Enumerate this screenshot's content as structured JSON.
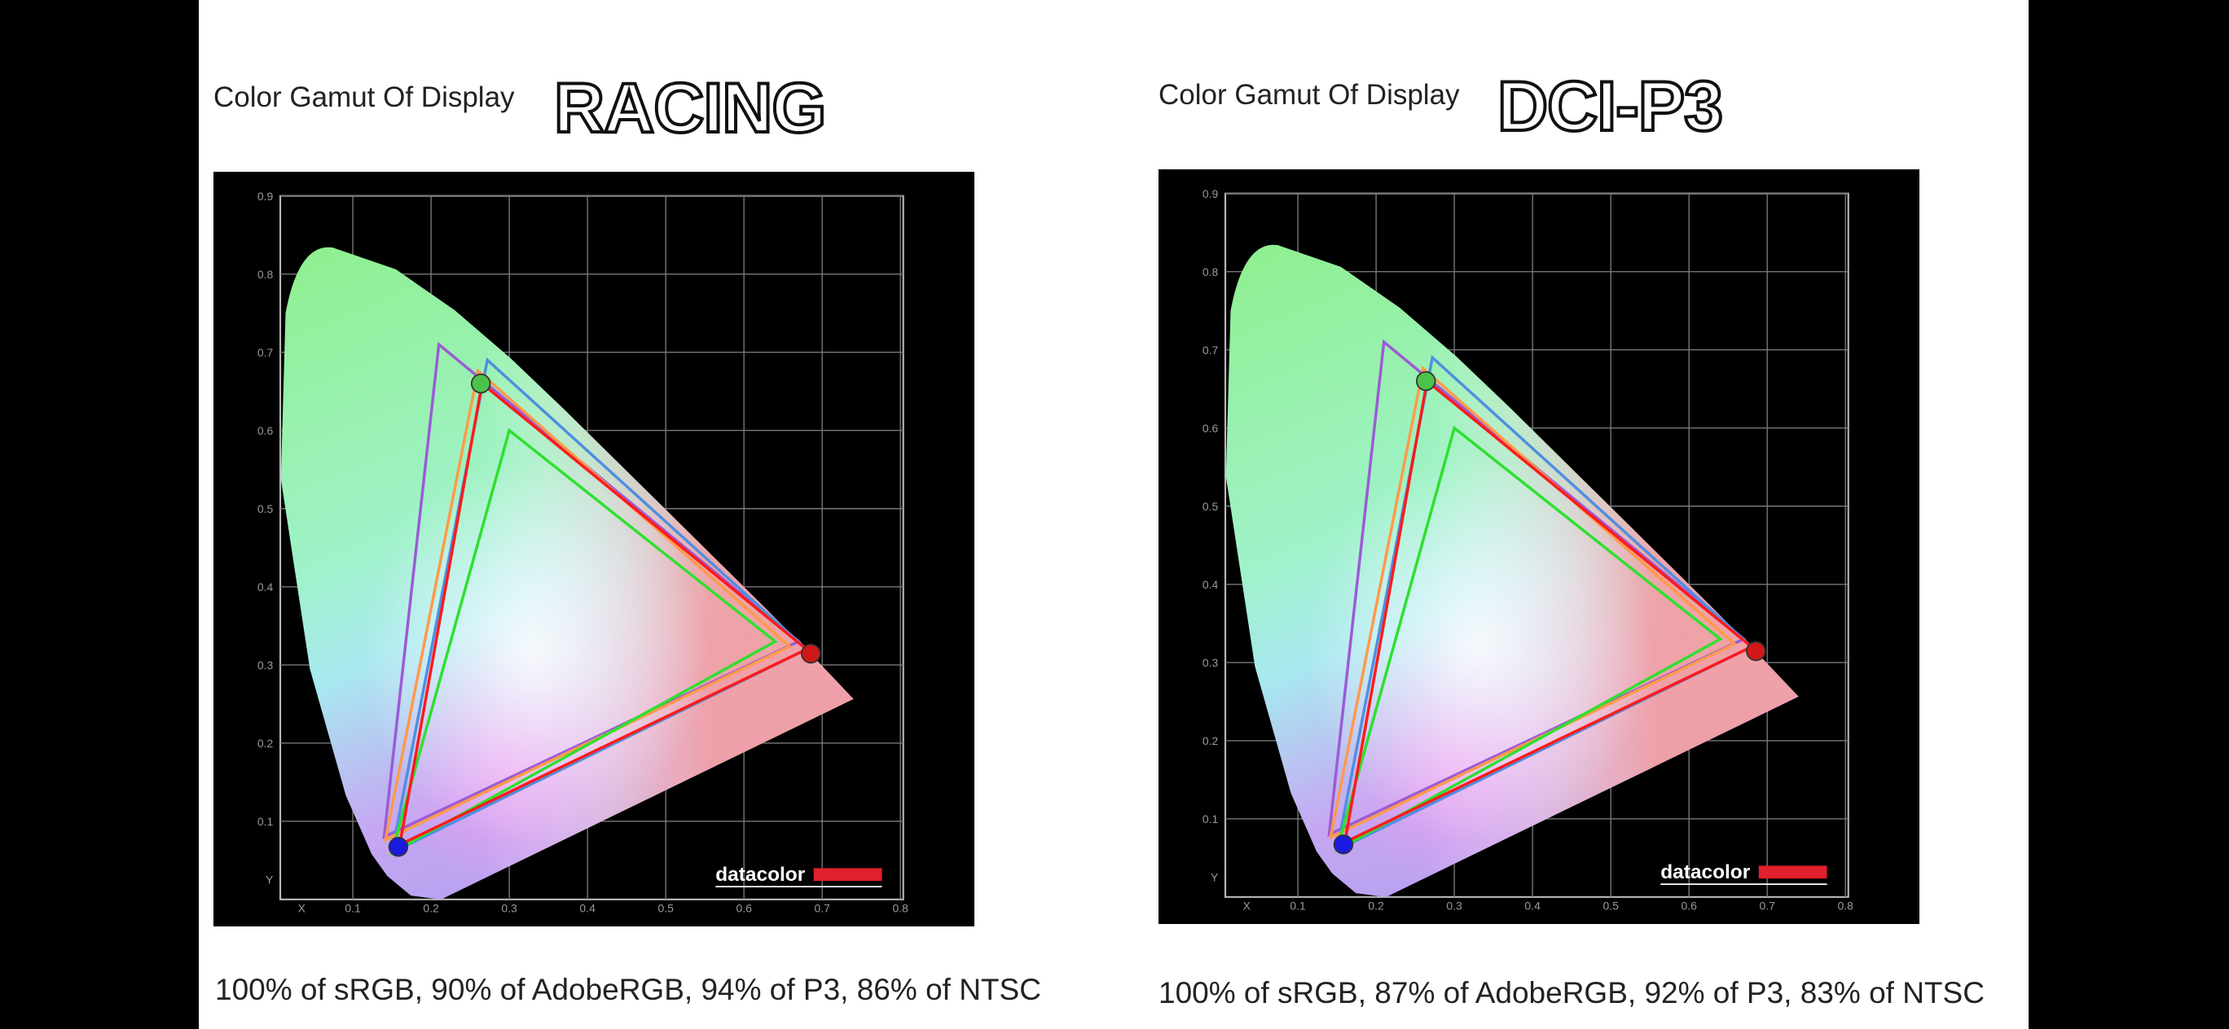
{
  "axes": {
    "x_label": "X",
    "y_label": "Y",
    "xticks": [
      0.1,
      0.2,
      0.3,
      0.4,
      0.5,
      0.6,
      0.7,
      0.8
    ],
    "yticks": [
      0.1,
      0.2,
      0.3,
      0.4,
      0.5,
      0.6,
      0.7,
      0.8,
      0.9
    ],
    "brand": "datacolor"
  },
  "panels": [
    {
      "heading": "Color Gamut Of Display",
      "mode": "RACING",
      "caption": "100% of sRGB, 90% of AdobeRGB, 94% of P3, 86% of NTSC"
    },
    {
      "heading": "Color Gamut Of Display",
      "mode": "DCI-P3",
      "caption": "100% of sRGB, 87% of AdobeRGB, 92% of P3, 83% of NTSC"
    }
  ]
}
